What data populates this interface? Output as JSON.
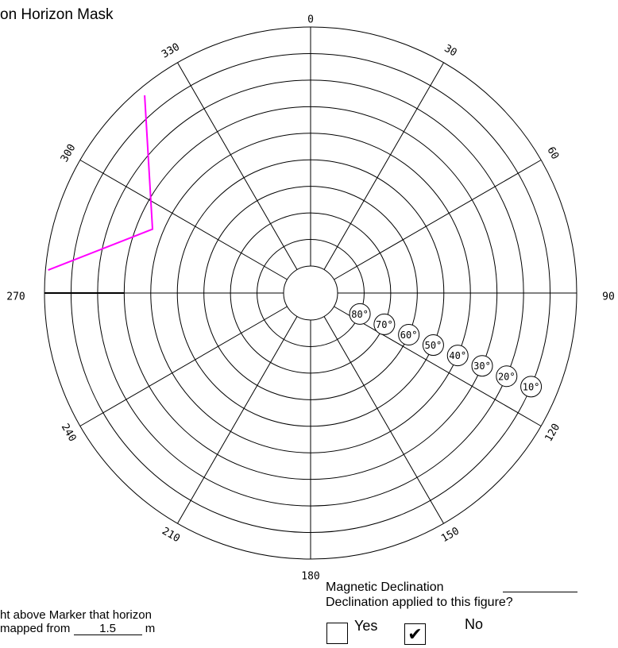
{
  "title": "on Horizon Mask",
  "azimuth_labels": [
    {
      "az": 0,
      "text": "0"
    },
    {
      "az": 30,
      "text": "30"
    },
    {
      "az": 60,
      "text": "60"
    },
    {
      "az": 90,
      "text": "90"
    },
    {
      "az": 120,
      "text": "120"
    },
    {
      "az": 150,
      "text": "150"
    },
    {
      "az": 180,
      "text": "180"
    },
    {
      "az": 210,
      "text": "210"
    },
    {
      "az": 240,
      "text": "240"
    },
    {
      "az": 270,
      "text": "270"
    },
    {
      "az": 300,
      "text": "300"
    },
    {
      "az": 330,
      "text": "330"
    }
  ],
  "elevation_labels": [
    "80°",
    "70°",
    "60°",
    "50°",
    "40°",
    "30°",
    "20°",
    "10°"
  ],
  "elevation_rings": [
    0,
    10,
    20,
    30,
    40,
    50,
    60,
    70,
    80
  ],
  "horizon_mask": {
    "color": "#ff00ff",
    "points": [
      {
        "az": 320,
        "el": 3
      },
      {
        "az": 292,
        "el": 36
      },
      {
        "az": 275,
        "el": 1
      }
    ]
  },
  "reference_line": {
    "az": 270,
    "el_from": 0,
    "el_to": 30,
    "color": "#000000"
  },
  "footer": {
    "height_line1": "ht above Marker that horizon",
    "height_line2_prefix": "mapped from ",
    "height_value": "1.5",
    "height_unit": "m",
    "declination_label": "Magnetic Declination",
    "applied_label": "Declination applied to this figure?",
    "yes_label": "Yes",
    "no_label": "No",
    "no_checked": true,
    "check_glyph": "✔"
  }
}
